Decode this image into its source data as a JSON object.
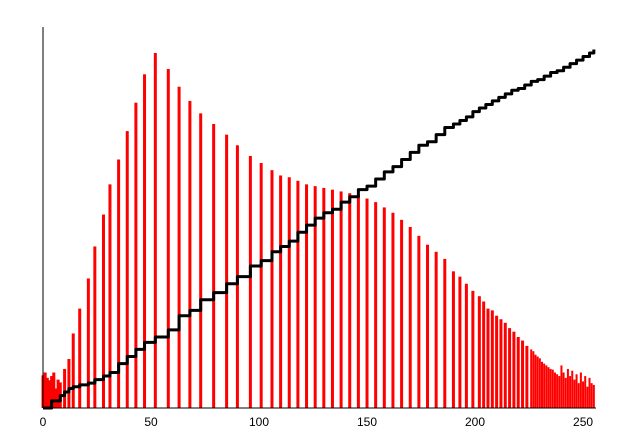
{
  "chart_data": {
    "type": "bar",
    "title": "",
    "xlabel": "",
    "ylabel": "",
    "xlim": [
      0,
      256
    ],
    "ylim": [
      0,
      1
    ],
    "x_ticks": [
      "0",
      "50",
      "100",
      "150",
      "200",
      "250"
    ],
    "grid": false,
    "legend": "none",
    "colors": {
      "histogram": "#ff0000",
      "cumulative": "#000000",
      "axis": "#000000"
    },
    "series": [
      {
        "type": "bar",
        "x": [
          0,
          1,
          2,
          3,
          4,
          5,
          6,
          7,
          8,
          10,
          12,
          14,
          17,
          21,
          24,
          28,
          31,
          35,
          39,
          43,
          47,
          52,
          58,
          63,
          68,
          73,
          79,
          85,
          90,
          96,
          101,
          106,
          110,
          114,
          118,
          122,
          126,
          130,
          134,
          138,
          142,
          146,
          150,
          154,
          158,
          162,
          166,
          170,
          174,
          178,
          182,
          186,
          190,
          193,
          196,
          199,
          202,
          204,
          206,
          208,
          210,
          212,
          214,
          216,
          218,
          220,
          222,
          224,
          226,
          227,
          228,
          229,
          230,
          231,
          232,
          233,
          234,
          235,
          236,
          237,
          238,
          239,
          240,
          241,
          242,
          243,
          244,
          245,
          246,
          247,
          248,
          249,
          250,
          251,
          252,
          253,
          254,
          255
        ],
        "values": [
          0.092,
          0.1,
          0.085,
          0.078,
          0.09,
          0.1,
          0.055,
          0.08,
          0.072,
          0.11,
          0.138,
          0.21,
          0.28,
          0.365,
          0.455,
          0.545,
          0.63,
          0.7,
          0.78,
          0.86,
          0.94,
          1.0,
          0.955,
          0.905,
          0.865,
          0.83,
          0.8,
          0.77,
          0.74,
          0.71,
          0.69,
          0.67,
          0.655,
          0.65,
          0.64,
          0.63,
          0.625,
          0.62,
          0.615,
          0.61,
          0.605,
          0.6,
          0.59,
          0.58,
          0.565,
          0.55,
          0.53,
          0.51,
          0.485,
          0.46,
          0.44,
          0.42,
          0.385,
          0.37,
          0.35,
          0.33,
          0.315,
          0.3,
          0.28,
          0.275,
          0.26,
          0.25,
          0.24,
          0.225,
          0.215,
          0.2,
          0.19,
          0.175,
          0.165,
          0.16,
          0.15,
          0.145,
          0.14,
          0.13,
          0.125,
          0.12,
          0.115,
          0.11,
          0.108,
          0.1,
          0.095,
          0.09,
          0.12,
          0.1,
          0.085,
          0.11,
          0.09,
          0.105,
          0.08,
          0.095,
          0.07,
          0.1,
          0.075,
          0.09,
          0.06,
          0.085,
          0.07,
          0.065
        ]
      },
      {
        "type": "line",
        "step": true,
        "x": [
          0,
          4,
          8,
          10,
          12,
          14,
          17,
          21,
          24,
          28,
          31,
          35,
          39,
          43,
          47,
          52,
          58,
          63,
          68,
          73,
          79,
          85,
          90,
          96,
          101,
          106,
          110,
          114,
          118,
          122,
          126,
          130,
          134,
          138,
          142,
          146,
          150,
          154,
          158,
          162,
          166,
          170,
          174,
          178,
          182,
          186,
          190,
          193,
          196,
          199,
          202,
          205,
          208,
          211,
          214,
          217,
          220,
          223,
          226,
          229,
          232,
          235,
          238,
          241,
          244,
          247,
          250,
          253,
          255
        ],
        "values": [
          0.0,
          0.02,
          0.035,
          0.045,
          0.055,
          0.06,
          0.065,
          0.07,
          0.08,
          0.09,
          0.1,
          0.125,
          0.145,
          0.165,
          0.185,
          0.2,
          0.22,
          0.26,
          0.275,
          0.305,
          0.325,
          0.35,
          0.37,
          0.4,
          0.415,
          0.44,
          0.455,
          0.47,
          0.495,
          0.515,
          0.535,
          0.55,
          0.56,
          0.58,
          0.595,
          0.615,
          0.625,
          0.645,
          0.665,
          0.68,
          0.7,
          0.72,
          0.74,
          0.75,
          0.77,
          0.79,
          0.8,
          0.81,
          0.82,
          0.835,
          0.845,
          0.855,
          0.865,
          0.875,
          0.885,
          0.895,
          0.9,
          0.91,
          0.92,
          0.925,
          0.935,
          0.945,
          0.95,
          0.96,
          0.97,
          0.98,
          0.99,
          1.0,
          1.01
        ]
      }
    ]
  }
}
